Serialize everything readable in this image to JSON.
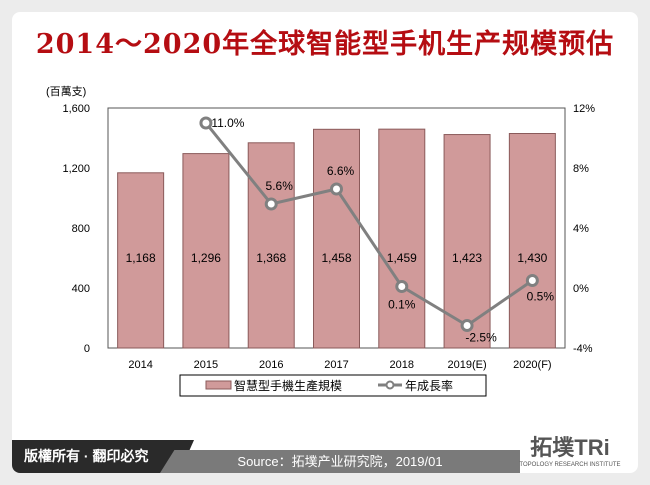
{
  "title": "2014～2020年全球智能型手机生产规模预估",
  "footer": {
    "rights": "版權所有 · 翻印必究",
    "source": "Source：拓墣产业研究院，2019/01",
    "logo": "拓墣TRi",
    "logo_sub": "TOPOLOGY RESEARCH INSTITUTE"
  },
  "colors": {
    "bar": "#d09a9a",
    "bar_border": "#8a5a5a",
    "line": "#808080",
    "title": "#b50d12"
  },
  "chart_data": {
    "type": "bar+line",
    "categories": [
      "2014",
      "2015",
      "2016",
      "2017",
      "2018",
      "2019(E)",
      "2020(F)"
    ],
    "y_unit": "(百萬支)",
    "ylim": [
      0,
      1600
    ],
    "yticks": [
      "0",
      "400",
      "800",
      "1,200",
      "1,600"
    ],
    "y2lim": [
      -4,
      12
    ],
    "y2ticks": [
      "-4%",
      "0%",
      "4%",
      "8%",
      "12%"
    ],
    "series": [
      {
        "name": "智慧型手機生產規模",
        "type": "bar",
        "values": [
          1168,
          1296,
          1368,
          1458,
          1459,
          1423,
          1430
        ],
        "labels": [
          "1,168",
          "1,296",
          "1,368",
          "1,458",
          "1,459",
          "1,423",
          "1,430"
        ]
      },
      {
        "name": "年成長率",
        "type": "line",
        "axis": "right",
        "values": [
          null,
          11.0,
          5.6,
          6.6,
          0.1,
          -2.5,
          0.5
        ],
        "labels": [
          "",
          "11.0%",
          "5.6%",
          "6.6%",
          "0.1%",
          "-2.5%",
          "0.5%"
        ]
      }
    ],
    "legend": "bottom",
    "grid": false
  }
}
